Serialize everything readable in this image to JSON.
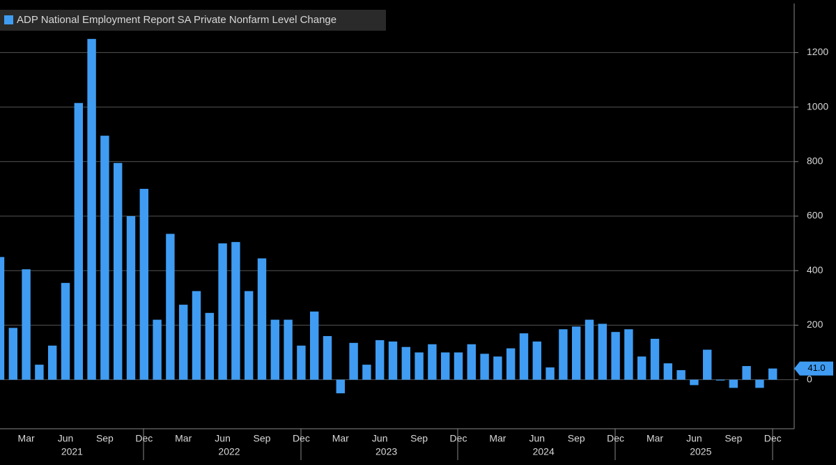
{
  "chart_data": {
    "type": "bar",
    "legend": "ADP National Employment Report SA Private Nonfarm Level Change",
    "color": "#3f9cf2",
    "categories": [
      null,
      null,
      "Mar",
      null,
      null,
      "Jun",
      null,
      null,
      "Sep",
      null,
      null,
      "Dec",
      null,
      null,
      "Mar",
      null,
      null,
      "Jun",
      null,
      null,
      "Sep",
      null,
      null,
      "Dec",
      null,
      null,
      "Mar",
      null,
      null,
      "Jun",
      null,
      null,
      "Sep",
      null,
      null,
      "Dec",
      null,
      null,
      "Mar",
      null,
      null,
      "Jun",
      null,
      null,
      "Sep",
      null,
      null,
      "Dec",
      null,
      null,
      "Mar",
      null,
      null,
      "Jun",
      null,
      null,
      "Sep",
      null,
      null,
      "Dec"
    ],
    "years": [
      "2021",
      "2022",
      "2023",
      "2024",
      "2025"
    ],
    "values": [
      450,
      190,
      405,
      55,
      125,
      355,
      1015,
      1250,
      895,
      795,
      600,
      700,
      220,
      535,
      275,
      325,
      245,
      500,
      505,
      325,
      445,
      220,
      220,
      125,
      250,
      160,
      -50,
      135,
      55,
      145,
      140,
      120,
      100,
      130,
      100,
      100,
      130,
      95,
      85,
      115,
      170,
      140,
      45,
      185,
      195,
      220,
      205,
      175,
      185,
      85,
      150,
      60,
      35,
      -20,
      110,
      -3,
      -30,
      50,
      -30,
      41
    ],
    "value_labels": [
      null,
      null,
      null,
      null,
      null,
      null,
      null,
      null,
      null,
      null,
      null,
      null,
      null,
      null,
      null,
      null,
      null,
      null,
      null,
      null,
      null,
      null,
      null,
      null,
      null,
      null,
      null,
      null,
      null,
      null,
      null,
      null,
      null,
      null,
      null,
      null,
      null,
      null,
      null,
      null,
      null,
      null,
      null,
      null,
      null,
      null,
      null,
      null,
      null,
      null,
      null,
      null,
      null,
      null,
      null,
      null,
      null,
      null,
      null,
      "41.0"
    ],
    "ylim": [
      -180,
      1380
    ],
    "yticks": [
      0,
      200,
      400,
      600,
      800,
      1000,
      1200
    ],
    "grid": true
  }
}
